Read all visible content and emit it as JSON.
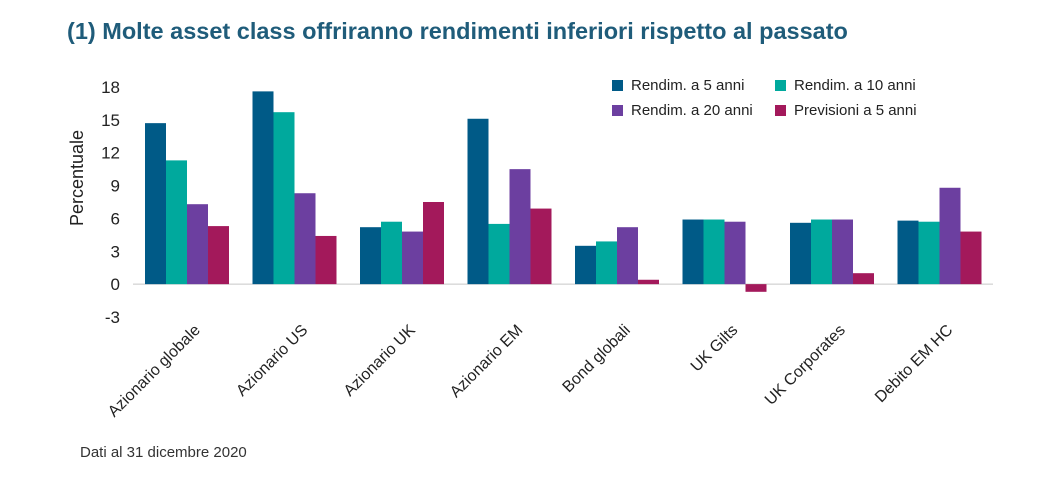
{
  "chart_data": {
    "type": "bar",
    "title": "(1) Molte asset class offriranno rendimenti inferiori rispetto al passato",
    "xlabel": "",
    "ylabel": "Percentuale",
    "ylim": [
      -3,
      18
    ],
    "yticks": [
      -3,
      0,
      3,
      6,
      9,
      12,
      15,
      18
    ],
    "legend_position": "top-right",
    "categories": [
      "Azionario globale",
      "Azionario US",
      "Azionario UK",
      "Azionario EM",
      "Bond globali",
      "UK Gilts",
      "UK Corporates",
      "Debito EM HC"
    ],
    "series": [
      {
        "name": "Rendim. a 5 anni",
        "color": "#005a87",
        "values": [
          14.7,
          17.6,
          5.2,
          15.1,
          3.5,
          5.9,
          5.6,
          5.8
        ]
      },
      {
        "name": "Rendim. a 10 anni",
        "color": "#00a99d",
        "values": [
          11.3,
          15.7,
          5.7,
          5.5,
          3.9,
          5.9,
          5.9,
          5.7
        ]
      },
      {
        "name": "Rendim. a 20 anni",
        "color": "#6c3fa0",
        "values": [
          7.3,
          8.3,
          4.8,
          10.5,
          5.2,
          5.7,
          5.9,
          8.8
        ]
      },
      {
        "name": "Previsioni a 5 anni",
        "color": "#a3195b",
        "values": [
          5.3,
          4.4,
          7.5,
          6.9,
          0.4,
          -0.7,
          1.0,
          4.8
        ]
      }
    ],
    "source": "Dati al 31 dicembre 2020"
  }
}
